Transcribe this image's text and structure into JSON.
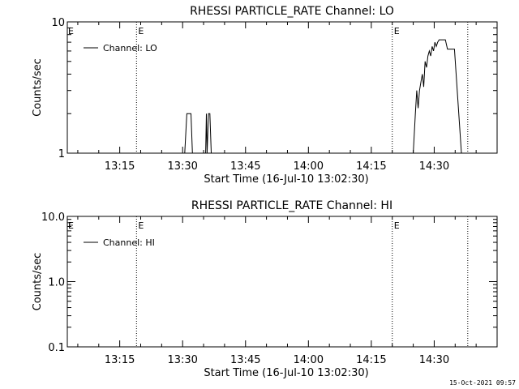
{
  "chart_data": [
    {
      "type": "line",
      "title": "RHESSI PARTICLE_RATE Channel: LO",
      "xlabel": "Start Time (16-Jul-10 13:02:30)",
      "ylabel": "Counts/sec",
      "y_scale": "log",
      "ylim": [
        1,
        10
      ],
      "xlim_minutes": [
        0,
        102.5
      ],
      "x_ticks": [
        "13:15",
        "13:30",
        "13:45",
        "14:00",
        "14:15",
        "14:30"
      ],
      "y_ticks": [
        "1",
        "10"
      ],
      "event_lines": [
        {
          "time": "13:19",
          "label": "E"
        },
        {
          "time": "14:20",
          "label": "E"
        },
        {
          "time": "14:38",
          "label": ""
        }
      ],
      "start_marker": "E",
      "legend": {
        "label": "Channel: LO",
        "position": "top-left"
      },
      "grid": false,
      "series": [
        {
          "name": "Channel: LO",
          "x": [
            "13:02:30",
            "13:30:30",
            "13:31:00",
            "13:32:00",
            "13:32:20",
            "13:35:30",
            "13:35:40",
            "13:35:50",
            "13:36:10",
            "13:36:30",
            "13:36:50",
            "13:37:00",
            "14:25:00",
            "14:25:30",
            "14:25:50",
            "14:26:10",
            "14:26:30",
            "14:26:50",
            "14:27:10",
            "14:27:30",
            "14:27:50",
            "14:28:10",
            "14:28:30",
            "14:28:50",
            "14:29:10",
            "14:29:30",
            "14:29:50",
            "14:30:10",
            "14:30:30",
            "14:30:50",
            "14:31:10",
            "14:31:40",
            "14:32:10",
            "14:32:40",
            "14:33:10",
            "14:34:30",
            "14:34:50",
            "14:36:30",
            "14:37:00",
            "14:38:00",
            "14:40:00"
          ],
          "y": [
            1,
            1,
            2,
            2,
            1,
            1,
            2,
            1,
            2,
            2,
            1,
            1,
            1,
            2,
            3,
            2.2,
            3,
            3.5,
            4,
            3.2,
            5,
            4.5,
            5.5,
            6,
            5.5,
            6.5,
            6,
            7,
            6.5,
            7,
            7.3,
            7.3,
            7.3,
            7.3,
            6.2,
            6.2,
            6.2,
            1,
            1,
            1,
            1
          ]
        }
      ]
    },
    {
      "type": "line",
      "title": "RHESSI PARTICLE_RATE Channel: HI",
      "xlabel": "Start Time (16-Jul-10 13:02:30)",
      "ylabel": "Counts/sec",
      "y_scale": "log",
      "ylim": [
        0.1,
        10
      ],
      "xlim_minutes": [
        0,
        102.5
      ],
      "x_ticks": [
        "13:15",
        "13:30",
        "13:45",
        "14:00",
        "14:15",
        "14:30"
      ],
      "y_ticks": [
        "0.1",
        "1.0",
        "10.0"
      ],
      "event_lines": [
        {
          "time": "13:19",
          "label": "E"
        },
        {
          "time": "14:20",
          "label": "E"
        },
        {
          "time": "14:38",
          "label": ""
        }
      ],
      "start_marker": "E",
      "legend": {
        "label": "Channel: HI",
        "position": "top-left"
      },
      "grid": false,
      "series": []
    }
  ],
  "footer": {
    "timestamp": "15-Oct-2021 09:57"
  },
  "colors": {
    "background": "#ffffff",
    "foreground": "#000000"
  }
}
